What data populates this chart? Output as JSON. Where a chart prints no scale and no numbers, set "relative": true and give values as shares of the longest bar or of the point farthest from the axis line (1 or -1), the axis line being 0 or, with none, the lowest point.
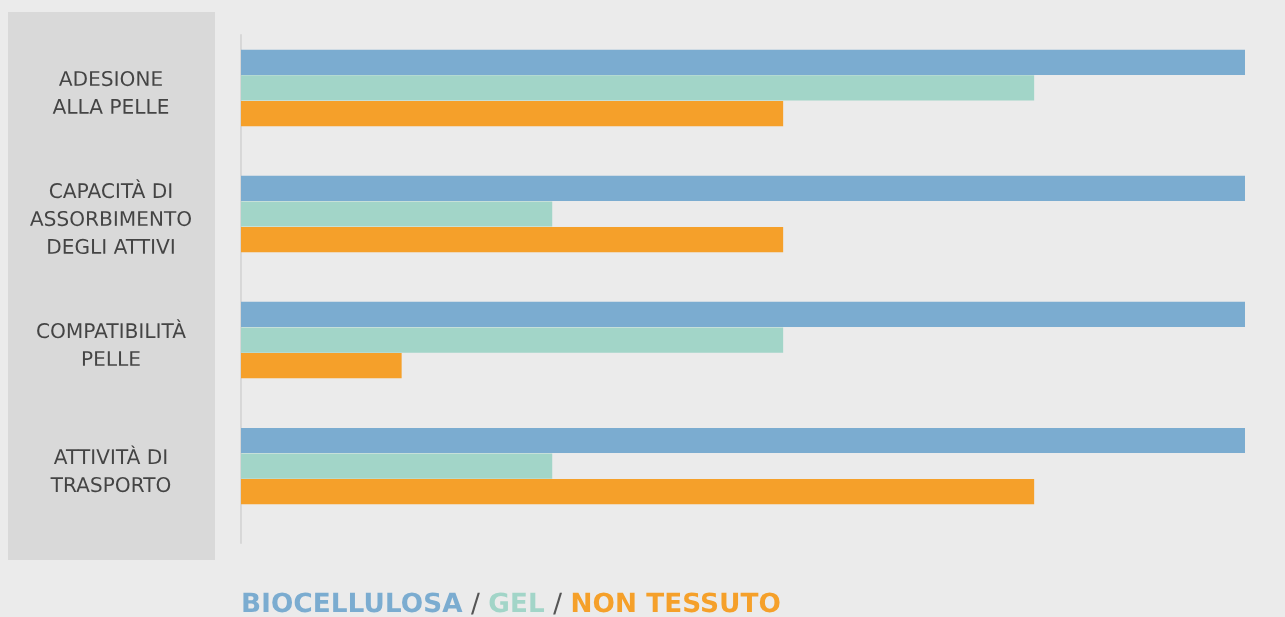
{
  "chart_data": {
    "type": "bar",
    "orientation": "horizontal",
    "relative": true,
    "categories": [
      "ADESIONE\nALLA PELLE",
      "CAPACITÀ DI\nASSORBIMENTO\nDEGLI ATTIVI",
      "COMPATIBILITÀ\nPELLE",
      "ATTIVITÀ DI\nTRASPORTO"
    ],
    "series": [
      {
        "name": "BIOCELLULOSA",
        "color": "#7bacd0",
        "values": [
          1,
          1,
          1,
          1
        ]
      },
      {
        "name": "GEL",
        "color": "#a2d5c8",
        "values": [
          0.79,
          0.31,
          0.54,
          0.31
        ]
      },
      {
        "name": "NON TESSUTO",
        "color": "#f5a02a",
        "values": [
          0.54,
          0.54,
          0.16,
          0.79
        ]
      }
    ],
    "annotations": [
      "/",
      "/"
    ],
    "legend": "bottom left"
  }
}
